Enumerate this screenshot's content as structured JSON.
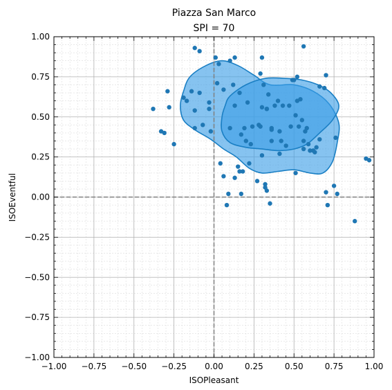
{
  "chart_data": {
    "type": "scatter",
    "title": "Piazza San Marco",
    "subtitle": "SPI = 70",
    "xlabel": "ISOPleasant",
    "ylabel": "ISOEventful",
    "xlim": [
      -1,
      1
    ],
    "ylim": [
      -1,
      1
    ],
    "xticks": [
      -1.0,
      -0.75,
      -0.5,
      -0.25,
      0.0,
      0.25,
      0.5,
      0.75,
      1.0
    ],
    "yticks": [
      -1.0,
      -0.75,
      -0.5,
      -0.25,
      0.0,
      0.25,
      0.5,
      0.75,
      1.0
    ],
    "xtick_labels": [
      "−1.00",
      "−0.75",
      "−0.50",
      "−0.25",
      "0.00",
      "0.25",
      "0.50",
      "0.75",
      "1.00"
    ],
    "ytick_labels": [
      "−1.00",
      "−0.75",
      "−0.50",
      "−0.25",
      "0.00",
      "0.25",
      "0.50",
      "0.75",
      "1.00"
    ],
    "grid": true,
    "minor_grid": true,
    "reference_lines": {
      "x": 0,
      "y": 0,
      "style": "dashed",
      "color": "#808080"
    },
    "point_color": "#1f77b4",
    "density_fill_color": "#3c9ee6",
    "density_edge_color": "#1a7fc4",
    "density_regions": [
      {
        "level": "outer",
        "polygon": [
          [
            -0.15,
            0.75
          ],
          [
            -0.05,
            0.82
          ],
          [
            0.05,
            0.85
          ],
          [
            0.15,
            0.82
          ],
          [
            0.25,
            0.76
          ],
          [
            0.35,
            0.7
          ],
          [
            0.5,
            0.7
          ],
          [
            0.62,
            0.66
          ],
          [
            0.72,
            0.58
          ],
          [
            0.78,
            0.46
          ],
          [
            0.77,
            0.34
          ],
          [
            0.74,
            0.22
          ],
          [
            0.68,
            0.15
          ],
          [
            0.6,
            0.15
          ],
          [
            0.5,
            0.17
          ],
          [
            0.4,
            0.16
          ],
          [
            0.3,
            0.15
          ],
          [
            0.22,
            0.18
          ],
          [
            0.14,
            0.25
          ],
          [
            0.06,
            0.3
          ],
          [
            -0.02,
            0.36
          ],
          [
            -0.12,
            0.42
          ],
          [
            -0.19,
            0.48
          ],
          [
            -0.21,
            0.57
          ],
          [
            -0.19,
            0.66
          ]
        ]
      },
      {
        "level": "inner",
        "polygon": [
          [
            0.1,
            0.63
          ],
          [
            0.2,
            0.7
          ],
          [
            0.32,
            0.74
          ],
          [
            0.45,
            0.74
          ],
          [
            0.55,
            0.73
          ],
          [
            0.65,
            0.7
          ],
          [
            0.73,
            0.65
          ],
          [
            0.78,
            0.57
          ],
          [
            0.74,
            0.48
          ],
          [
            0.66,
            0.4
          ],
          [
            0.58,
            0.33
          ],
          [
            0.5,
            0.3
          ],
          [
            0.4,
            0.29
          ],
          [
            0.3,
            0.3
          ],
          [
            0.2,
            0.31
          ],
          [
            0.1,
            0.34
          ],
          [
            0.05,
            0.41
          ],
          [
            0.05,
            0.5
          ],
          [
            0.07,
            0.57
          ]
        ]
      }
    ],
    "x": [
      0.01,
      0.03,
      0.1,
      0.13,
      0.3,
      0.56,
      -0.12,
      -0.09,
      0.7,
      0.5,
      0.52,
      -0.29,
      0.29,
      0.38,
      0.49,
      -0.14,
      0.12,
      0.02,
      0.31,
      0.4,
      0.54,
      0.66,
      0.69,
      0.16,
      0.21,
      0.3,
      -0.12,
      -0.07,
      -0.02,
      -0.03,
      -0.38,
      -0.28,
      -0.33,
      -0.31,
      -0.25,
      -0.19,
      -0.17,
      -0.12,
      -0.09,
      -0.03,
      0.06,
      0.1,
      0.13,
      0.17,
      0.19,
      0.23,
      0.28,
      0.33,
      0.36,
      0.41,
      0.45,
      0.51,
      0.55,
      0.58,
      0.6,
      0.64,
      0.66,
      0.2,
      0.24,
      0.29,
      0.33,
      0.36,
      0.43,
      0.47,
      0.52,
      0.56,
      0.63,
      0.34,
      0.15,
      0.18,
      0.3,
      0.36,
      0.41,
      0.48,
      0.57,
      0.59,
      0.62,
      0.76,
      0.04,
      0.06,
      0.13,
      0.32,
      0.33,
      0.27,
      0.51,
      0.22,
      0.42,
      0.17,
      0.09,
      0.08,
      0.16,
      0.32,
      0.7,
      0.71,
      0.77,
      0.75,
      0.88,
      0.35,
      0.95,
      0.97,
      0.56,
      0.53
    ],
    "y": [
      0.87,
      0.83,
      0.85,
      0.87,
      0.87,
      0.94,
      0.93,
      0.91,
      0.76,
      0.73,
      0.75,
      0.66,
      0.77,
      0.57,
      0.73,
      0.66,
      0.7,
      0.71,
      0.7,
      0.6,
      0.61,
      0.69,
      0.68,
      0.65,
      0.59,
      0.56,
      0.43,
      0.45,
      0.41,
      0.59,
      0.55,
      0.56,
      0.41,
      0.4,
      0.33,
      0.62,
      0.6,
      0.54,
      0.65,
      0.55,
      0.67,
      0.43,
      0.57,
      0.39,
      0.43,
      0.33,
      0.45,
      0.55,
      0.35,
      0.27,
      0.32,
      0.51,
      0.48,
      0.43,
      0.29,
      0.31,
      0.36,
      0.35,
      0.44,
      0.44,
      0.55,
      0.42,
      0.57,
      0.57,
      0.6,
      0.3,
      0.28,
      0.64,
      0.19,
      0.16,
      0.26,
      0.43,
      0.41,
      0.44,
      0.41,
      0.33,
      0.29,
      0.37,
      0.21,
      0.13,
      0.12,
      0.08,
      0.04,
      0.1,
      0.15,
      0.21,
      0.35,
      0.02,
      0.02,
      -0.05,
      0.16,
      0.06,
      0.03,
      -0.05,
      0.02,
      0.07,
      -0.15,
      -0.04,
      0.24,
      0.23,
      0.35,
      0.44
    ]
  }
}
